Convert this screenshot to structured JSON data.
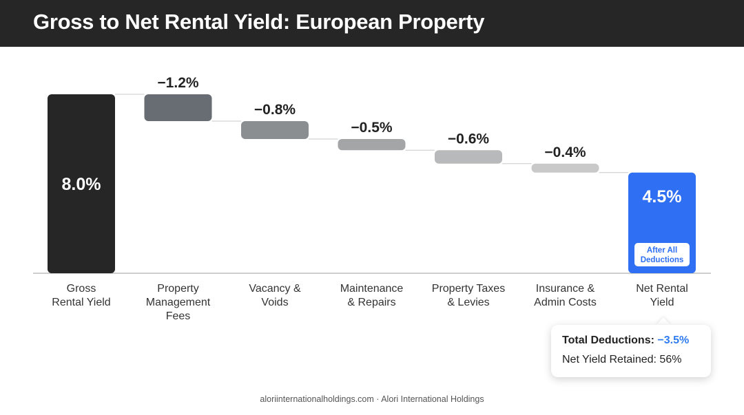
{
  "header": {
    "title": "Gross to Net Rental Yield: European Property"
  },
  "chart_data": {
    "type": "waterfall",
    "unit": "%",
    "categories": [
      [
        "Gross",
        "Rental Yield"
      ],
      [
        "Property",
        "Management",
        "Fees"
      ],
      [
        "Vacancy &",
        "Voids"
      ],
      [
        "Maintenance",
        "& Repairs"
      ],
      [
        "Property Taxes",
        "& Levies"
      ],
      [
        "Insurance &",
        "Admin Costs"
      ],
      [
        "Net Rental",
        "Yield"
      ]
    ],
    "values": [
      8.0,
      -1.2,
      -0.8,
      -0.5,
      -0.6,
      -0.4,
      4.5
    ],
    "data_labels": [
      "8.0%",
      "−1.2%",
      "−0.8%",
      "−0.5%",
      "−0.6%",
      "−0.4%",
      "4.5%"
    ],
    "total_badge": [
      "After All",
      "Deductions"
    ],
    "ylim": [
      0,
      8.0
    ],
    "grid": false,
    "colors": {
      "start": "#262626",
      "total": "#2f6ff3",
      "deductions": [
        "#676d73",
        "#8b8e91",
        "#a3a5a7",
        "#b8b9ba",
        "#c9c9ca"
      ],
      "connector": "#c8c8c8",
      "baseline": "#bdbdbd"
    }
  },
  "summary": {
    "total_deductions_label": "Total Deductions:",
    "total_deductions_value": "−3.5%",
    "net_retained": "Net Yield Retained: 56%"
  },
  "footer": {
    "text": "aloriinternationalholdings.com · Alori International Holdings"
  }
}
